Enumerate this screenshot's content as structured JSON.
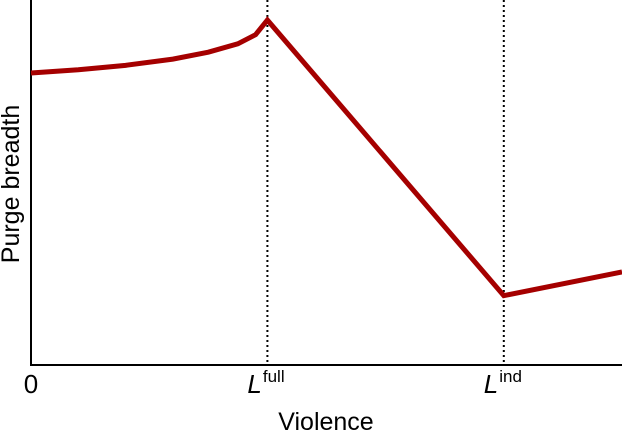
{
  "chart_data": {
    "type": "line",
    "title": "",
    "xlabel": "Violence",
    "ylabel": "Purge breadth",
    "xlim": [
      0,
      1
    ],
    "ylim": [
      0,
      1
    ],
    "grid": false,
    "legend": "none",
    "line_color": "#a50000",
    "x_ticks": [
      {
        "x": 0,
        "label": "0",
        "superscript": ""
      },
      {
        "x": 0.4,
        "label": "L",
        "superscript": "full"
      },
      {
        "x": 0.8,
        "label": "L",
        "superscript": "ind"
      }
    ],
    "reference_lines": [
      0.4,
      0.8
    ],
    "series": [
      {
        "segments": [
          {
            "shape": "convex-rising",
            "x": [
              0,
              0.08,
              0.16,
              0.24,
              0.3,
              0.35,
              0.38,
              0.4
            ],
            "y": [
              0.8,
              0.809,
              0.821,
              0.838,
              0.857,
              0.88,
              0.905,
              0.945
            ]
          },
          {
            "shape": "linear",
            "x": [
              0.4,
              0.8
            ],
            "y": [
              0.945,
              0.19
            ]
          },
          {
            "shape": "linear",
            "x": [
              0.8,
              1.0
            ],
            "y": [
              0.19,
              0.255
            ]
          }
        ]
      }
    ]
  }
}
